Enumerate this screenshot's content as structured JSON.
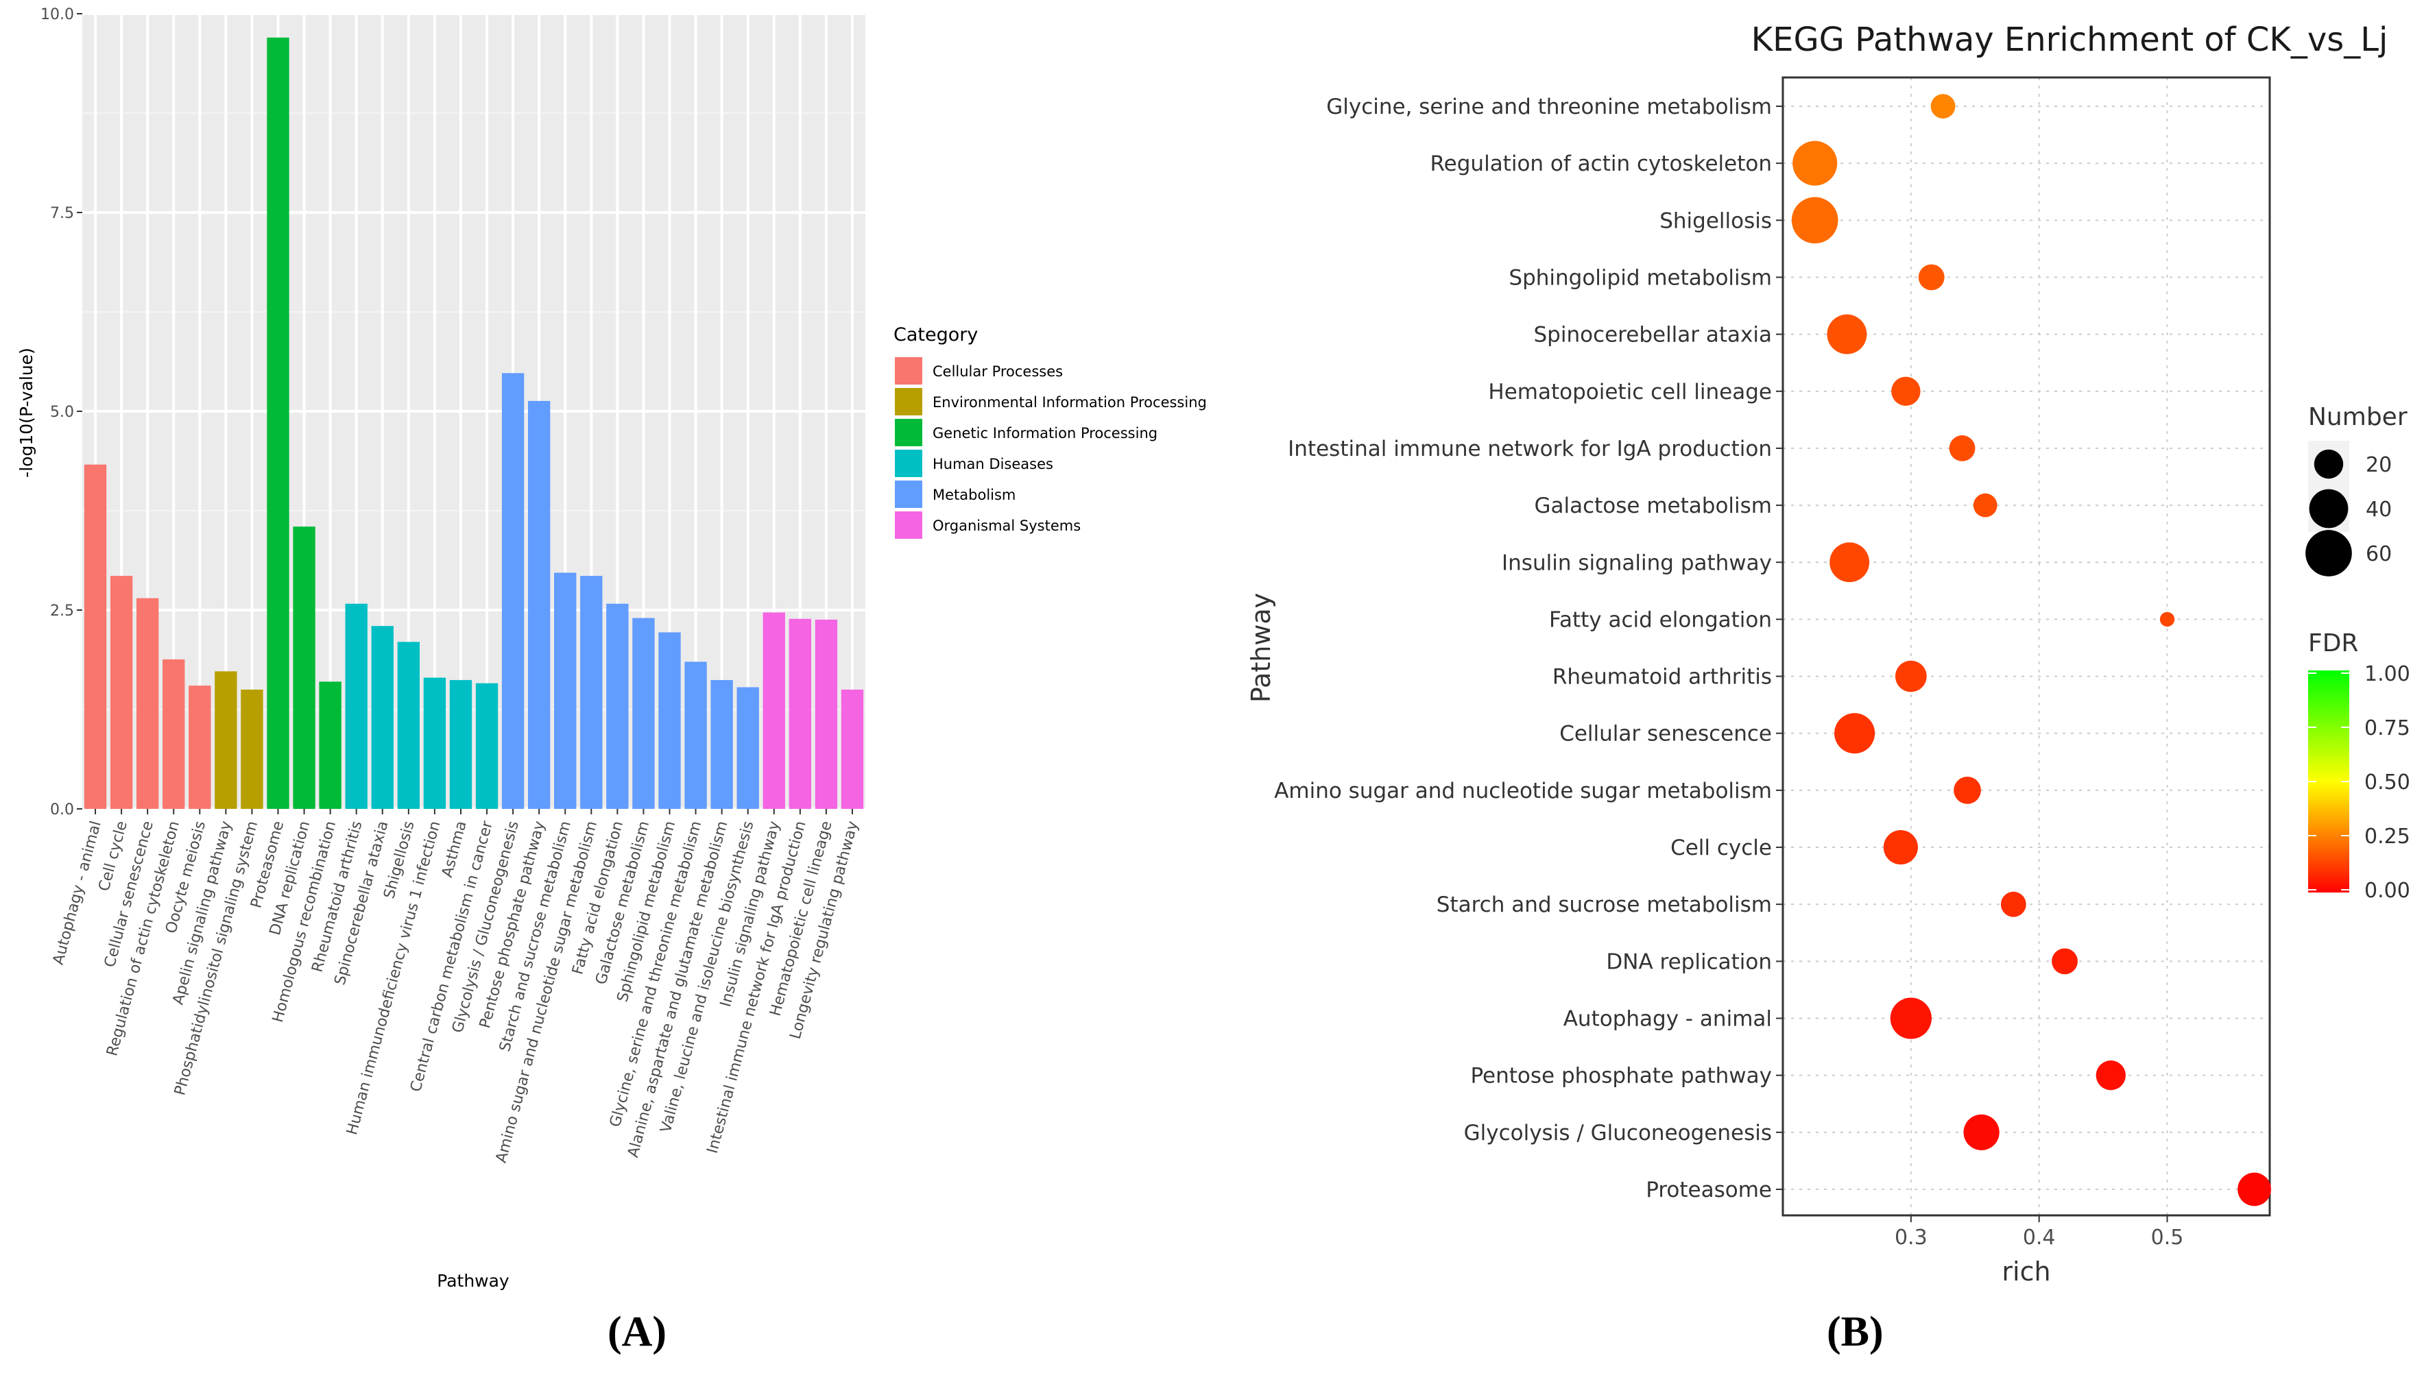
{
  "panel_labels": {
    "a": "(A)",
    "b": "(B)"
  },
  "chart_data": [
    {
      "type": "bar",
      "panel": "(A)",
      "title": "",
      "xlabel": "Pathway",
      "ylabel": "-log10(P-value)",
      "ylim": [
        0,
        10
      ],
      "yticks": [
        "0.0",
        "2.5",
        "5.0",
        "7.5",
        "10.0"
      ],
      "grid": true,
      "legend_title": "Category",
      "legend_position": "right",
      "categories_legend": [
        {
          "name": "Cellular Processes",
          "color": "#F8766D"
        },
        {
          "name": "Environmental Information Processing",
          "color": "#B79F00"
        },
        {
          "name": "Genetic Information Processing",
          "color": "#00BA38"
        },
        {
          "name": "Human Diseases",
          "color": "#00BFC4"
        },
        {
          "name": "Metabolism",
          "color": "#619CFF"
        },
        {
          "name": "Organismal Systems",
          "color": "#F564E3"
        }
      ],
      "bars": [
        {
          "label": "Autophagy - animal",
          "value": 4.33,
          "cat": 0
        },
        {
          "label": "Cell cycle",
          "value": 2.93,
          "cat": 0
        },
        {
          "label": "Cellular senescence",
          "value": 2.65,
          "cat": 0
        },
        {
          "label": "Regulation of actin cytoskeleton",
          "value": 1.88,
          "cat": 0
        },
        {
          "label": "Oocyte meiosis",
          "value": 1.55,
          "cat": 0
        },
        {
          "label": "Apelin signaling pathway",
          "value": 1.73,
          "cat": 1
        },
        {
          "label": "Phosphatidylinositol signaling system",
          "value": 1.5,
          "cat": 1
        },
        {
          "label": "Proteasome",
          "value": 9.7,
          "cat": 2
        },
        {
          "label": "DNA replication",
          "value": 3.55,
          "cat": 2
        },
        {
          "label": "Homologous recombination",
          "value": 1.6,
          "cat": 2
        },
        {
          "label": "Rheumatoid arthritis",
          "value": 2.58,
          "cat": 3
        },
        {
          "label": "Spinocerebellar ataxia",
          "value": 2.3,
          "cat": 3
        },
        {
          "label": "Shigellosis",
          "value": 2.1,
          "cat": 3
        },
        {
          "label": "Human immunodeficiency virus 1 infection",
          "value": 1.65,
          "cat": 3
        },
        {
          "label": "Asthma",
          "value": 1.62,
          "cat": 3
        },
        {
          "label": "Central carbon metabolism in cancer",
          "value": 1.58,
          "cat": 3
        },
        {
          "label": "Glycolysis / Gluconeogenesis",
          "value": 5.48,
          "cat": 4
        },
        {
          "label": "Pentose phosphate pathway",
          "value": 5.13,
          "cat": 4
        },
        {
          "label": "Starch and sucrose metabolism",
          "value": 2.97,
          "cat": 4
        },
        {
          "label": "Amino sugar and nucleotide sugar metabolism",
          "value": 2.93,
          "cat": 4
        },
        {
          "label": "Fatty acid elongation",
          "value": 2.58,
          "cat": 4
        },
        {
          "label": "Galactose metabolism",
          "value": 2.4,
          "cat": 4
        },
        {
          "label": "Sphingolipid metabolism",
          "value": 2.22,
          "cat": 4
        },
        {
          "label": "Glycine, serine and threonine metabolism",
          "value": 1.85,
          "cat": 4
        },
        {
          "label": "Alanine, aspartate and glutamate metabolism",
          "value": 1.62,
          "cat": 4
        },
        {
          "label": "Valine, leucine and isoleucine biosynthesis",
          "value": 1.53,
          "cat": 4
        },
        {
          "label": "Insulin signaling pathway",
          "value": 2.47,
          "cat": 5
        },
        {
          "label": "Intestinal immune network for IgA production",
          "value": 2.39,
          "cat": 5
        },
        {
          "label": "Hematopoietic cell lineage",
          "value": 2.38,
          "cat": 5
        },
        {
          "label": "Longevity regulating pathway",
          "value": 1.5,
          "cat": 5
        }
      ]
    },
    {
      "type": "scatter",
      "panel": "(B)",
      "title": "KEGG Pathway Enrichment of CK_vs_Lj",
      "xlabel": "rich",
      "ylabel": "Pathway",
      "xlim": [
        0.2,
        0.58
      ],
      "xticks": [
        0.3,
        0.4,
        0.5
      ],
      "xtick_labels": [
        "0.3",
        "0.4",
        "0.5"
      ],
      "grid": true,
      "size_legend": {
        "title": "Number",
        "values": [
          20,
          40,
          60
        ],
        "labels": [
          "20",
          "40",
          "60"
        ]
      },
      "color_legend": {
        "title": "FDR",
        "ticks": [
          "1.00",
          "0.75",
          "0.50",
          "0.25",
          "0.00"
        ],
        "colors": [
          "#ff0000",
          "#ffff00",
          "#00ff00"
        ]
      },
      "points": [
        {
          "pathway": "Glycine, serine and threonine metabolism",
          "rich": 0.325,
          "number": 13,
          "fdr": 0.26
        },
        {
          "pathway": "Regulation of actin cytoskeleton",
          "rich": 0.225,
          "number": 55,
          "fdr": 0.23
        },
        {
          "pathway": "Shigellosis",
          "rich": 0.225,
          "number": 60,
          "fdr": 0.21
        },
        {
          "pathway": "Sphingolipid metabolism",
          "rich": 0.316,
          "number": 15,
          "fdr": 0.17
        },
        {
          "pathway": "Spinocerebellar ataxia",
          "rich": 0.25,
          "number": 42,
          "fdr": 0.16
        },
        {
          "pathway": "Hematopoietic cell lineage",
          "rich": 0.296,
          "number": 20,
          "fdr": 0.15
        },
        {
          "pathway": "Intestinal immune network for IgA production",
          "rich": 0.34,
          "number": 15,
          "fdr": 0.15
        },
        {
          "pathway": "Galactose metabolism",
          "rich": 0.358,
          "number": 12,
          "fdr": 0.15
        },
        {
          "pathway": "Insulin signaling pathway",
          "rich": 0.252,
          "number": 42,
          "fdr": 0.14
        },
        {
          "pathway": "Fatty acid elongation",
          "rich": 0.5,
          "number": 3,
          "fdr": 0.14
        },
        {
          "pathway": "Rheumatoid arthritis",
          "rich": 0.3,
          "number": 24,
          "fdr": 0.12
        },
        {
          "pathway": "Cellular senescence",
          "rich": 0.256,
          "number": 44,
          "fdr": 0.1
        },
        {
          "pathway": "Amino sugar and nucleotide sugar metabolism",
          "rich": 0.344,
          "number": 17,
          "fdr": 0.1
        },
        {
          "pathway": "Cell cycle",
          "rich": 0.292,
          "number": 30,
          "fdr": 0.1
        },
        {
          "pathway": "Starch and sucrose metabolism",
          "rich": 0.38,
          "number": 14,
          "fdr": 0.09
        },
        {
          "pathway": "DNA replication",
          "rich": 0.42,
          "number": 15,
          "fdr": 0.06
        },
        {
          "pathway": "Autophagy - animal",
          "rich": 0.3,
          "number": 46,
          "fdr": 0.04
        },
        {
          "pathway": "Pentose phosphate pathway",
          "rich": 0.456,
          "number": 21,
          "fdr": 0.03
        },
        {
          "pathway": "Glycolysis / Gluconeogenesis",
          "rich": 0.355,
          "number": 33,
          "fdr": 0.02
        },
        {
          "pathway": "Proteasome",
          "rich": 0.568,
          "number": 28,
          "fdr": 0.01
        }
      ]
    }
  ]
}
